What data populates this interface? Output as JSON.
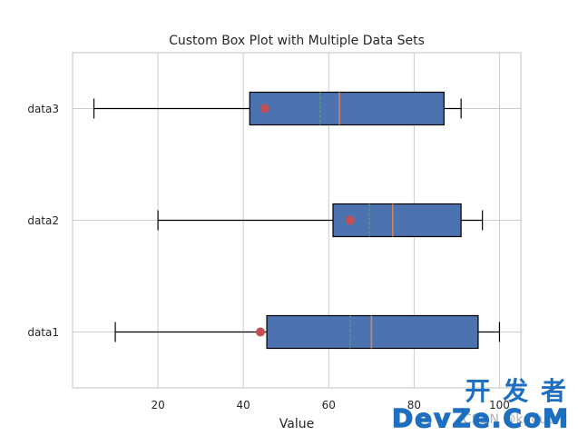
{
  "watermark": {
    "cn": "开 发 者",
    "brand": "DevZe.CoM",
    "small": "CSDN @kgduu"
  },
  "chart_data": {
    "type": "box",
    "orientation": "horizontal",
    "title": "Custom Box Plot with Multiple Data Sets",
    "xlabel": "Value",
    "ylabel": "",
    "xlim": [
      0,
      105
    ],
    "xticks": [
      20,
      40,
      60,
      80,
      100
    ],
    "grid": true,
    "categories": [
      "data1",
      "data2",
      "data3"
    ],
    "series": [
      {
        "name": "data1",
        "whisker_low": 10,
        "q1": 45.5,
        "median": 70,
        "mean": 65,
        "q3": 95,
        "whisker_high": 100,
        "outliers": [
          44
        ]
      },
      {
        "name": "data2",
        "whisker_low": 20,
        "q1": 61,
        "median": 75,
        "mean": 69.5,
        "q3": 91,
        "whisker_high": 96,
        "outliers": [
          65
        ]
      },
      {
        "name": "data3",
        "whisker_low": 5,
        "q1": 41.5,
        "median": 62.5,
        "mean": 58,
        "q3": 87,
        "whisker_high": 91,
        "outliers": [
          45
        ]
      }
    ],
    "colors": {
      "box_fill": "#4c72b0",
      "box_edge": "#000000",
      "median": "#dd8452",
      "mean": "#55a868",
      "flier": "#c44e52",
      "grid": "#cccccc",
      "spine": "#cccccc"
    }
  }
}
